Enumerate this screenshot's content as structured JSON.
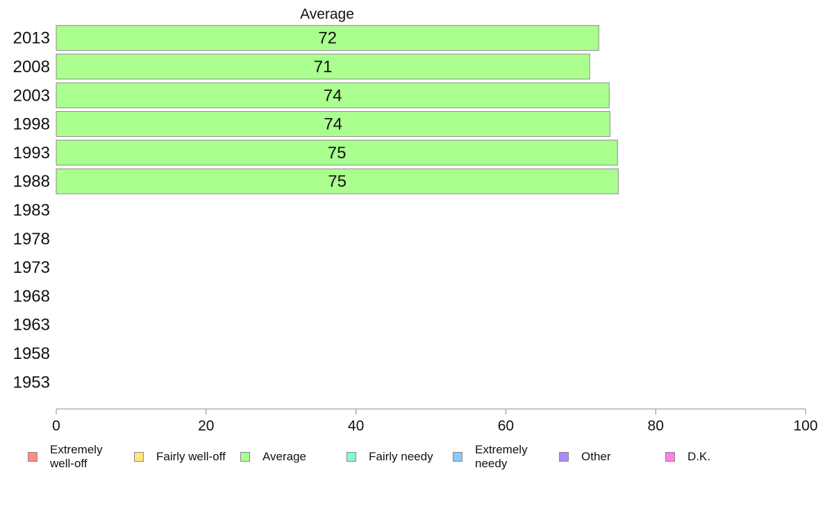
{
  "chart_data": {
    "type": "bar",
    "orientation": "horizontal",
    "title": "Average",
    "categories": [
      "2013",
      "2008",
      "2003",
      "1998",
      "1993",
      "1988",
      "1983",
      "1978",
      "1973",
      "1968",
      "1963",
      "1958",
      "1953"
    ],
    "series": [
      {
        "name": "Average",
        "color": "#aaff8f",
        "values": [
          72.4,
          71.2,
          73.8,
          73.9,
          74.9,
          75.0,
          null,
          null,
          null,
          null,
          null,
          null,
          null
        ],
        "labels": [
          "72",
          "71",
          "74",
          "74",
          "75",
          "75",
          "",
          "",
          "",
          "",
          "",
          "",
          ""
        ]
      }
    ],
    "xlim": [
      0,
      100
    ],
    "xticks": [
      "0",
      "20",
      "40",
      "60",
      "80",
      "100"
    ],
    "grid": false,
    "legend_position": "bottom",
    "legend": [
      {
        "label": "Extremely\nwell-off",
        "color": "#ff8a8a"
      },
      {
        "label": "Fairly well-off",
        "color": "#ffe680"
      },
      {
        "label": "Average",
        "color": "#aaff8f"
      },
      {
        "label": "Fairly needy",
        "color": "#80ffc8"
      },
      {
        "label": "Extremely\nneedy",
        "color": "#8ac8ff"
      },
      {
        "label": "Other",
        "color": "#a98aff"
      },
      {
        "label": "D.K.",
        "color": "#ff80e6"
      }
    ]
  }
}
